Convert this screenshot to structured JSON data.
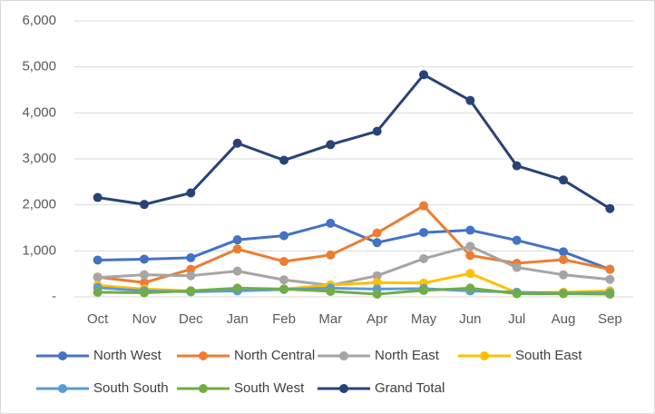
{
  "chart_data": {
    "type": "line",
    "categories": [
      "Oct",
      "Nov",
      "Dec",
      "Jan",
      "Feb",
      "Mar",
      "Apr",
      "May",
      "Jun",
      "Jul",
      "Aug",
      "Sep"
    ],
    "series": [
      {
        "name": "North West",
        "color": "#4472c4",
        "values": [
          800,
          820,
          850,
          1240,
          1330,
          1600,
          1180,
          1400,
          1450,
          1230,
          980,
          600
        ]
      },
      {
        "name": "North Central",
        "color": "#ed7d31",
        "values": [
          430,
          310,
          600,
          1040,
          770,
          910,
          1390,
          1980,
          900,
          730,
          810,
          600
        ]
      },
      {
        "name": "North East",
        "color": "#a5a5a5",
        "values": [
          420,
          480,
          460,
          560,
          370,
          250,
          460,
          830,
          1100,
          640,
          480,
          380
        ]
      },
      {
        "name": "South East",
        "color": "#ffc000",
        "values": [
          250,
          170,
          130,
          170,
          170,
          260,
          310,
          300,
          510,
          90,
          100,
          130
        ]
      },
      {
        "name": "South South",
        "color": "#5b9bd5",
        "values": [
          200,
          130,
          110,
          130,
          160,
          190,
          170,
          180,
          130,
          100,
          80,
          90
        ]
      },
      {
        "name": "South West",
        "color": "#70ad47",
        "values": [
          100,
          90,
          130,
          190,
          170,
          120,
          60,
          140,
          190,
          70,
          70,
          60
        ]
      },
      {
        "name": "Grand Total",
        "color": "#264478",
        "values": [
          2160,
          2010,
          2260,
          3340,
          2970,
          3310,
          3600,
          4830,
          4270,
          2850,
          2540,
          1920
        ]
      }
    ],
    "ylim": [
      0,
      6000
    ],
    "yticks": [
      {
        "value": 0,
        "label": "-"
      },
      {
        "value": 1000,
        "label": "1,000"
      },
      {
        "value": 2000,
        "label": "2,000"
      },
      {
        "value": 3000,
        "label": "3,000"
      },
      {
        "value": 4000,
        "label": "4,000"
      },
      {
        "value": 5000,
        "label": "5,000"
      },
      {
        "value": 6000,
        "label": "6,000"
      }
    ],
    "grid": true,
    "legend": "bottom"
  }
}
